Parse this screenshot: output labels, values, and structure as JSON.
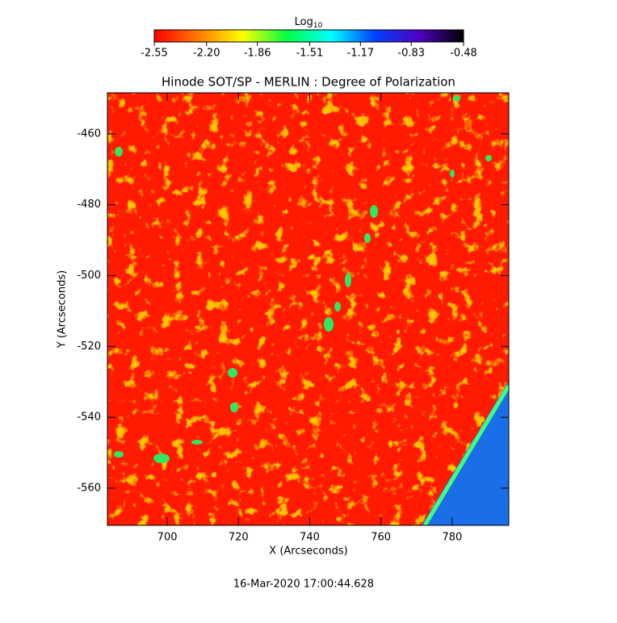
{
  "chart_data": {
    "type": "heatmap",
    "title": "Hinode SOT/SP - MERLIN : Degree of Polarization",
    "x_label": "X (Arcseconds)",
    "y_label": "Y (Arcseconds)",
    "footer": "16-Mar-2020 17:00:44.628",
    "xlim": [
      683.2,
      795.9
    ],
    "ylim": [
      -570.5,
      -448.4
    ],
    "xticks": [
      700,
      720,
      740,
      760,
      780
    ],
    "yticks": [
      -560,
      -540,
      -520,
      -500,
      -480,
      -460
    ],
    "colorbar": {
      "label": "Log",
      "label_subscript": "10",
      "clim": [
        -2.55,
        -0.48
      ],
      "ticks": [
        -2.55,
        {
          "value": -2.2,
          "label": "-2.20"
        },
        -1.86,
        -1.51,
        -1.17,
        -0.83,
        -0.48
      ],
      "colormap": [
        "#ff0000",
        "#ff7a00",
        "#ffff00",
        "#00ff40",
        "#00ffff",
        "#0040ff",
        "#5000c0",
        "#000000"
      ]
    }
  }
}
